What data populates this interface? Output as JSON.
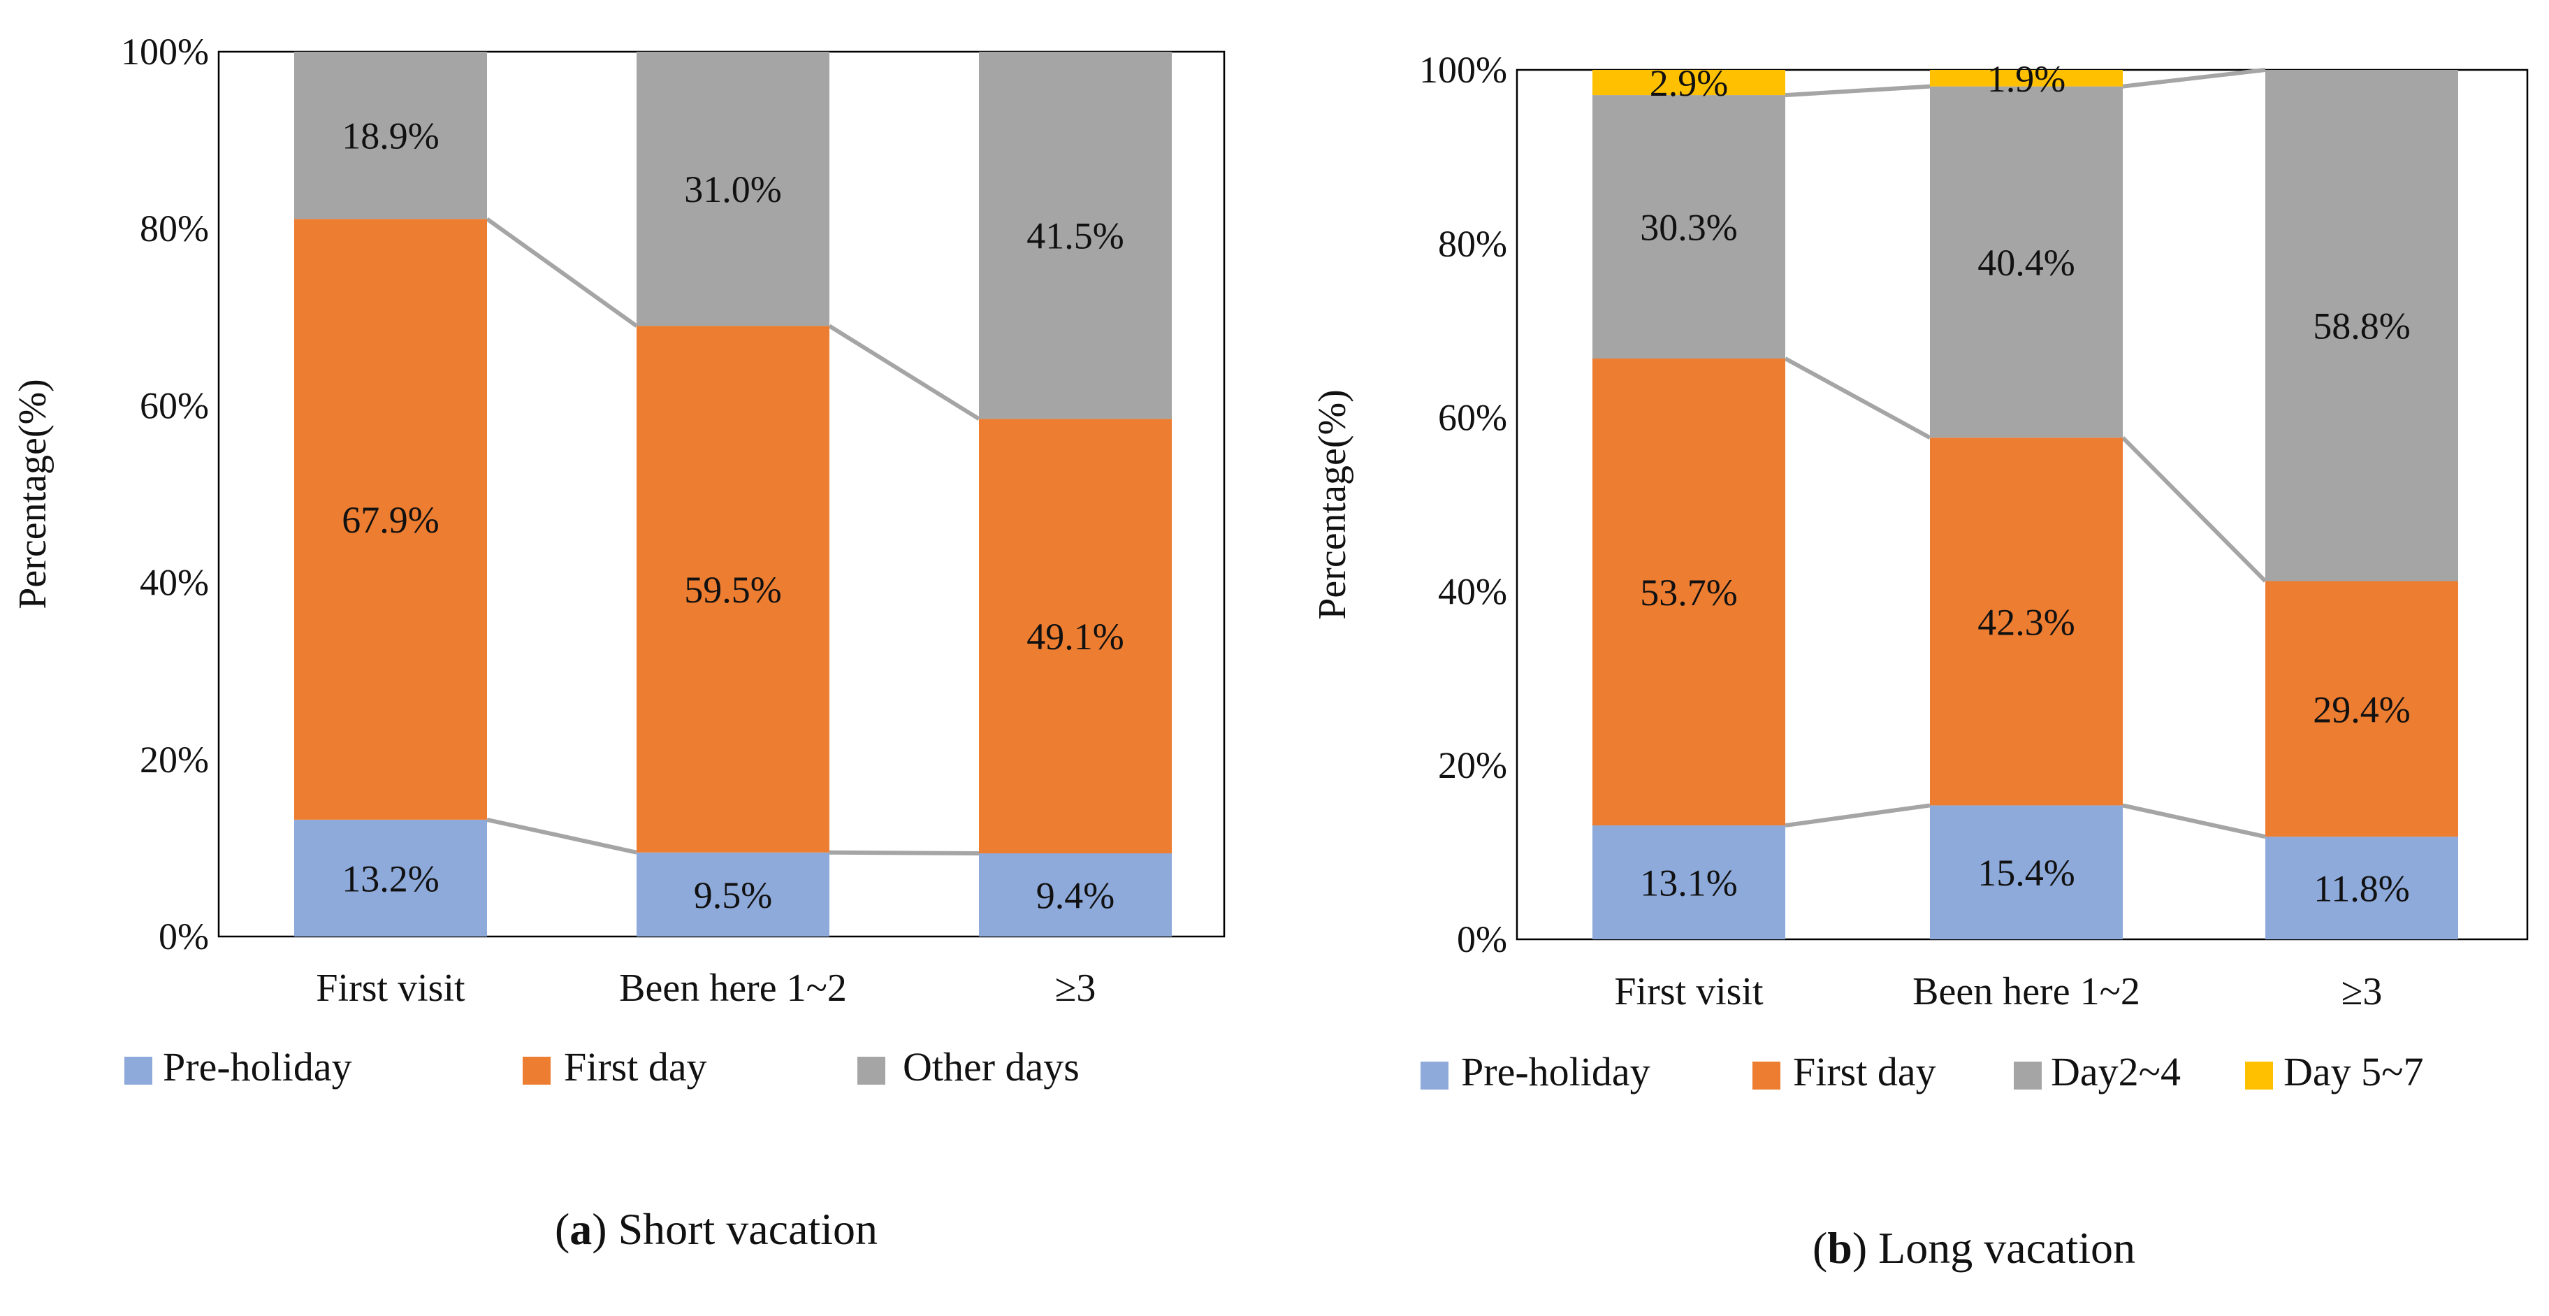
{
  "chart_data": [
    {
      "type": "bar",
      "stacked": true,
      "caption_letter": "a",
      "caption_text": " Short vacation",
      "ylabel": "Percentage(%)",
      "ylim": [
        0,
        100
      ],
      "yticks": [
        "0%",
        "20%",
        "40%",
        "60%",
        "80%",
        "100%"
      ],
      "categories": [
        "First visit",
        "Been here 1~2",
        "≥3"
      ],
      "series": [
        {
          "name": "Pre-holiday",
          "color": "#8eaadb",
          "values": [
            13.2,
            9.5,
            9.4
          ],
          "labels": [
            "13.2%",
            "9.5%",
            "9.4%"
          ]
        },
        {
          "name": "First day",
          "color": "#ed7d31",
          "values": [
            67.9,
            59.5,
            49.1
          ],
          "labels": [
            "67.9%",
            "59.5%",
            "49.1%"
          ]
        },
        {
          "name": "Other days",
          "color": "#a5a5a5",
          "values": [
            18.9,
            31.0,
            41.5
          ],
          "labels": [
            "18.9%",
            "31.0%",
            "41.5%"
          ]
        }
      ],
      "legend": "bottom"
    },
    {
      "type": "bar",
      "stacked": true,
      "caption_letter": "b",
      "caption_text": " Long vacation",
      "ylabel": "Percentage(%)",
      "ylim": [
        0,
        100
      ],
      "yticks": [
        "0%",
        "20%",
        "40%",
        "60%",
        "80%",
        "100%"
      ],
      "categories": [
        "First visit",
        "Been here 1~2",
        "≥3"
      ],
      "series": [
        {
          "name": "Pre-holiday",
          "color": "#8eaadb",
          "values": [
            13.1,
            15.4,
            11.8
          ],
          "labels": [
            "13.1%",
            "15.4%",
            "11.8%"
          ]
        },
        {
          "name": "First day",
          "color": "#ed7d31",
          "values": [
            53.7,
            42.3,
            29.4
          ],
          "labels": [
            "53.7%",
            "42.3%",
            "29.4%"
          ]
        },
        {
          "name": "Day2~4",
          "color": "#a5a5a5",
          "values": [
            30.3,
            40.4,
            58.8
          ],
          "labels": [
            "30.3%",
            "40.4%",
            "58.8%"
          ]
        },
        {
          "name": "Day 5~7",
          "color": "#ffc000",
          "values": [
            2.9,
            1.9,
            0
          ],
          "labels": [
            "2.9%",
            "1.9%",
            ""
          ]
        }
      ],
      "legend": "bottom"
    }
  ]
}
